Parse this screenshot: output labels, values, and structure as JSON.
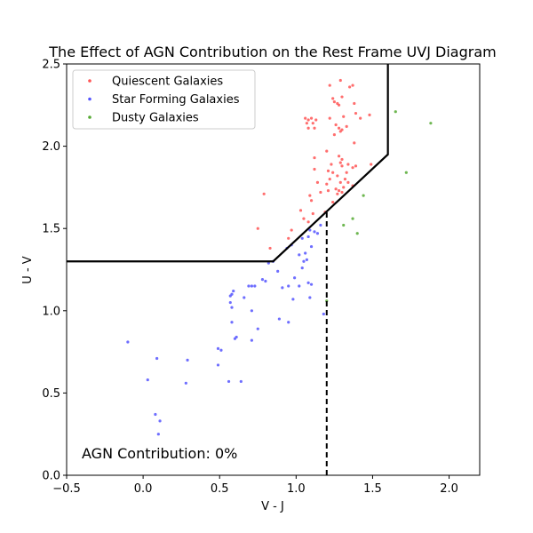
{
  "chart_data": {
    "type": "scatter",
    "title": "The Effect of AGN Contribution on the Rest Frame UVJ Diagram",
    "xlabel": "V - J",
    "ylabel": "U - V",
    "xlim": [
      -0.5,
      2.2
    ],
    "ylim": [
      0.0,
      2.5
    ],
    "xticks": [
      -0.5,
      0.0,
      0.5,
      1.0,
      1.5,
      2.0
    ],
    "yticks": [
      0.0,
      0.5,
      1.0,
      1.5,
      2.0,
      2.5
    ],
    "xtick_labels": [
      "−0.5",
      "0.0",
      "0.5",
      "1.0",
      "1.5",
      "2.0"
    ],
    "ytick_labels": [
      "0.0",
      "0.5",
      "1.0",
      "1.5",
      "2.0",
      "2.5"
    ],
    "grid": false,
    "legend_position": "top-left",
    "annotation": "AGN Contribution: 0%",
    "boundary": [
      [
        -0.5,
        1.3
      ],
      [
        0.85,
        1.3
      ],
      [
        1.6,
        1.95
      ],
      [
        1.6,
        2.5
      ]
    ],
    "vertical_line": {
      "x": 1.2,
      "y_range": [
        0.0,
        1.6
      ],
      "style": "dashed"
    },
    "series": [
      {
        "name": "Quiescent Galaxies",
        "color": "#ff5555",
        "points": [
          [
            1.22,
            2.37
          ],
          [
            1.29,
            2.4
          ],
          [
            1.35,
            2.36
          ],
          [
            1.37,
            2.37
          ],
          [
            1.24,
            2.29
          ],
          [
            1.25,
            2.27
          ],
          [
            1.27,
            2.26
          ],
          [
            1.28,
            2.25
          ],
          [
            1.3,
            2.3
          ],
          [
            1.38,
            2.26
          ],
          [
            1.39,
            2.2
          ],
          [
            1.06,
            2.17
          ],
          [
            1.07,
            2.14
          ],
          [
            1.08,
            2.16
          ],
          [
            1.1,
            2.17
          ],
          [
            1.11,
            2.14
          ],
          [
            1.13,
            2.16
          ],
          [
            1.12,
            2.11
          ],
          [
            1.08,
            2.11
          ],
          [
            1.22,
            2.17
          ],
          [
            1.26,
            2.13
          ],
          [
            1.28,
            2.11
          ],
          [
            1.31,
            2.18
          ],
          [
            1.33,
            2.12
          ],
          [
            1.3,
            2.1
          ],
          [
            1.29,
            2.09
          ],
          [
            1.25,
            2.07
          ],
          [
            1.42,
            2.17
          ],
          [
            1.48,
            2.19
          ],
          [
            1.38,
            2.02
          ],
          [
            1.12,
            1.93
          ],
          [
            1.2,
            1.97
          ],
          [
            1.28,
            1.94
          ],
          [
            1.3,
            1.92
          ],
          [
            1.29,
            1.9
          ],
          [
            1.3,
            1.88
          ],
          [
            1.34,
            1.89
          ],
          [
            1.37,
            1.87
          ],
          [
            1.39,
            1.88
          ],
          [
            1.33,
            1.84
          ],
          [
            1.32,
            1.8
          ],
          [
            1.23,
            1.89
          ],
          [
            1.21,
            1.85
          ],
          [
            1.24,
            1.84
          ],
          [
            1.12,
            1.86
          ],
          [
            1.27,
            1.82
          ],
          [
            1.29,
            1.78
          ],
          [
            1.22,
            1.8
          ],
          [
            1.14,
            1.78
          ],
          [
            1.2,
            1.77
          ],
          [
            1.21,
            1.73
          ],
          [
            1.26,
            1.74
          ],
          [
            1.28,
            1.73
          ],
          [
            1.31,
            1.75
          ],
          [
            1.34,
            1.78
          ],
          [
            1.37,
            1.76
          ],
          [
            1.27,
            1.71
          ],
          [
            1.3,
            1.72
          ],
          [
            1.24,
            1.66
          ],
          [
            1.16,
            1.72
          ],
          [
            1.09,
            1.7
          ],
          [
            1.1,
            1.67
          ],
          [
            1.19,
            1.6
          ],
          [
            1.49,
            1.89
          ],
          [
            1.03,
            1.61
          ],
          [
            1.05,
            1.56
          ],
          [
            1.08,
            1.54
          ],
          [
            1.11,
            1.59
          ],
          [
            0.79,
            1.71
          ],
          [
            0.75,
            1.5
          ],
          [
            0.97,
            1.49
          ],
          [
            0.95,
            1.44
          ],
          [
            0.83,
            1.38
          ]
        ]
      },
      {
        "name": "Star Forming Galaxies",
        "color": "#5555ff",
        "points": [
          [
            1.16,
            1.52
          ],
          [
            1.12,
            1.48
          ],
          [
            1.14,
            1.47
          ],
          [
            1.09,
            1.49
          ],
          [
            1.08,
            1.45
          ],
          [
            1.04,
            1.44
          ],
          [
            1.1,
            1.39
          ],
          [
            0.97,
            1.4
          ],
          [
            0.94,
            1.38
          ],
          [
            1.06,
            1.35
          ],
          [
            1.07,
            1.31
          ],
          [
            1.05,
            1.3
          ],
          [
            1.02,
            1.34
          ],
          [
            0.85,
            1.3
          ],
          [
            0.82,
            1.29
          ],
          [
            0.88,
            1.24
          ],
          [
            0.99,
            1.2
          ],
          [
            0.78,
            1.19
          ],
          [
            0.8,
            1.18
          ],
          [
            1.04,
            1.26
          ],
          [
            1.08,
            1.17
          ],
          [
            1.1,
            1.16
          ],
          [
            1.02,
            1.15
          ],
          [
            0.95,
            1.15
          ],
          [
            0.91,
            1.14
          ],
          [
            0.71,
            1.15
          ],
          [
            0.73,
            1.15
          ],
          [
            0.69,
            1.15
          ],
          [
            0.59,
            1.12
          ],
          [
            0.58,
            1.1
          ],
          [
            0.57,
            1.09
          ],
          [
            0.66,
            1.08
          ],
          [
            0.57,
            1.05
          ],
          [
            0.58,
            1.02
          ],
          [
            1.09,
            1.08
          ],
          [
            0.98,
            1.07
          ],
          [
            0.71,
            1.0
          ],
          [
            1.18,
            0.98
          ],
          [
            0.89,
            0.95
          ],
          [
            0.95,
            0.93
          ],
          [
            0.58,
            0.93
          ],
          [
            0.75,
            0.89
          ],
          [
            0.61,
            0.84
          ],
          [
            0.6,
            0.83
          ],
          [
            0.71,
            0.82
          ],
          [
            -0.1,
            0.81
          ],
          [
            0.49,
            0.77
          ],
          [
            0.51,
            0.76
          ],
          [
            0.09,
            0.71
          ],
          [
            0.29,
            0.7
          ],
          [
            0.49,
            0.67
          ],
          [
            0.56,
            0.57
          ],
          [
            0.64,
            0.57
          ],
          [
            0.03,
            0.58
          ],
          [
            0.28,
            0.56
          ],
          [
            0.08,
            0.37
          ],
          [
            0.11,
            0.33
          ],
          [
            0.1,
            0.25
          ]
        ]
      },
      {
        "name": "Dusty Galaxies",
        "color": "#55aa33",
        "points": [
          [
            1.65,
            2.21
          ],
          [
            1.88,
            2.14
          ],
          [
            1.72,
            1.84
          ],
          [
            1.44,
            1.7
          ],
          [
            1.37,
            1.56
          ],
          [
            1.31,
            1.52
          ],
          [
            1.4,
            1.47
          ],
          [
            1.2,
            1.06
          ]
        ]
      }
    ]
  }
}
